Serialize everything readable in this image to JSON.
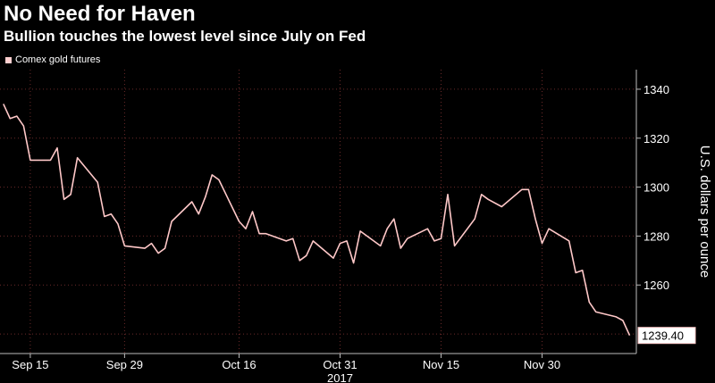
{
  "chart_data": {
    "type": "line",
    "title": "No Need for Haven",
    "subtitle": "Bullion touches the lowest level since July on Fed",
    "legend": [
      "Comex gold futures"
    ],
    "ylabel": "U.S. dollars per ounce",
    "xlabel": "",
    "year_label": "2017",
    "ylim": [
      1232,
      1348
    ],
    "y_ticks": [
      1260,
      1280,
      1300,
      1320,
      1340
    ],
    "x_ticks": [
      "Sep 15",
      "Sep 29",
      "Oct 16",
      "Oct 31",
      "Nov 15",
      "Nov 30"
    ],
    "last_value_label": "1239.40",
    "line_color": "#ffc8c8",
    "grid": true,
    "series": [
      {
        "name": "Comex gold futures",
        "x": [
          "2017-09-11",
          "2017-09-12",
          "2017-09-13",
          "2017-09-14",
          "2017-09-15",
          "2017-09-18",
          "2017-09-19",
          "2017-09-20",
          "2017-09-21",
          "2017-09-22",
          "2017-09-25",
          "2017-09-26",
          "2017-09-27",
          "2017-09-28",
          "2017-09-29",
          "2017-10-02",
          "2017-10-03",
          "2017-10-04",
          "2017-10-05",
          "2017-10-06",
          "2017-10-09",
          "2017-10-10",
          "2017-10-11",
          "2017-10-12",
          "2017-10-13",
          "2017-10-16",
          "2017-10-17",
          "2017-10-18",
          "2017-10-19",
          "2017-10-20",
          "2017-10-23",
          "2017-10-24",
          "2017-10-25",
          "2017-10-26",
          "2017-10-27",
          "2017-10-30",
          "2017-10-31",
          "2017-11-01",
          "2017-11-02",
          "2017-11-03",
          "2017-11-06",
          "2017-11-07",
          "2017-11-08",
          "2017-11-09",
          "2017-11-10",
          "2017-11-13",
          "2017-11-14",
          "2017-11-15",
          "2017-11-16",
          "2017-11-17",
          "2017-11-20",
          "2017-11-21",
          "2017-11-22",
          "2017-11-24",
          "2017-11-27",
          "2017-11-28",
          "2017-11-29",
          "2017-11-30",
          "2017-12-01",
          "2017-12-04",
          "2017-12-05",
          "2017-12-06",
          "2017-12-07",
          "2017-12-08",
          "2017-12-11",
          "2017-12-12",
          "2017-12-13"
        ],
        "values": [
          1334,
          1328,
          1329,
          1325,
          1311,
          1311,
          1316,
          1295,
          1297,
          1312,
          1302,
          1288,
          1289,
          1285,
          1276,
          1275,
          1277,
          1273,
          1275,
          1286,
          1294,
          1289,
          1296,
          1305,
          1303,
          1286,
          1283,
          1290,
          1281,
          1281,
          1278,
          1279,
          1270,
          1272,
          1278,
          1271,
          1277,
          1278,
          1269,
          1282,
          1276,
          1283,
          1287,
          1275,
          1279,
          1283,
          1278,
          1279,
          1297,
          1276,
          1287,
          1297,
          1295,
          1292,
          1299,
          1299,
          1287,
          1277,
          1283,
          1278,
          1265,
          1266,
          1253,
          1249,
          1247,
          1245.5,
          1239.4
        ]
      }
    ]
  }
}
